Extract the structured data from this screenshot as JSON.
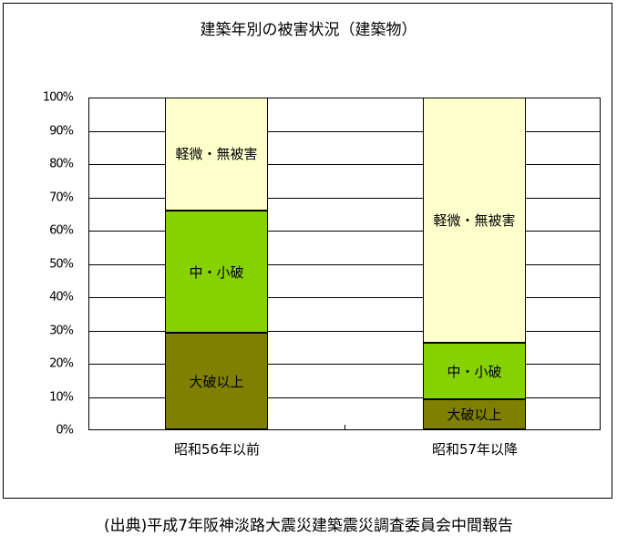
{
  "title": "建築年別の被害状況（建築物）",
  "source": "(出典)平成7年阪神淡路大震災建築震災調査委員会中間報告",
  "y_ticks": [
    "100%",
    "90%",
    "80%",
    "70%",
    "60%",
    "50%",
    "40%",
    "30%",
    "20%",
    "10%",
    "0%"
  ],
  "categories": [
    "昭和56年以前",
    "昭和57年以降"
  ],
  "segment_labels": {
    "severe": "大破以上",
    "moderate": "中・小破",
    "minor": "軽微・無被害"
  },
  "colors": {
    "severe": "#808000",
    "moderate": "#86d200",
    "minor": "#ffffcc"
  },
  "chart_data": {
    "type": "bar",
    "stacked": true,
    "title": "建築年別の被害状況（建築物）",
    "xlabel": "",
    "ylabel": "",
    "ylim": [
      0,
      100
    ],
    "y_unit": "%",
    "grid": true,
    "legend": "none (labels inside bars)",
    "categories": [
      "昭和56年以前",
      "昭和57年以降"
    ],
    "series": [
      {
        "name": "大破以上",
        "values": [
          29,
          9
        ],
        "color": "#808000"
      },
      {
        "name": "中・小破",
        "values": [
          37,
          17
        ],
        "color": "#86d200"
      },
      {
        "name": "軽微・無被害",
        "values": [
          34,
          74
        ],
        "color": "#ffffcc"
      }
    ]
  }
}
